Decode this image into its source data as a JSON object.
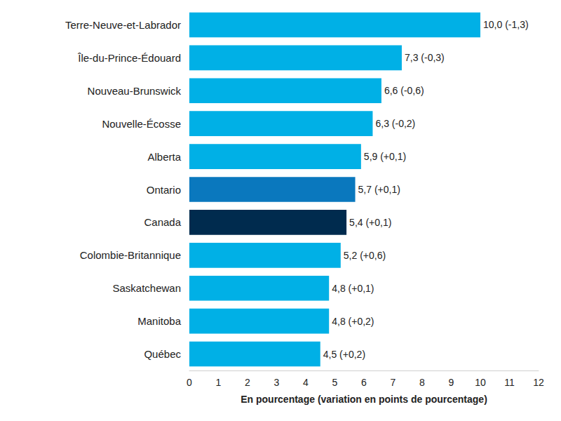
{
  "chart_data": {
    "type": "bar",
    "orientation": "horizontal",
    "categories": [
      "Terre-Neuve-et-Labrador",
      "Île-du-Prince-Édouard",
      "Nouveau-Brunswick",
      "Nouvelle-Écosse",
      "Alberta",
      "Ontario",
      "Canada",
      "Colombie-Britannique",
      "Saskatchewan",
      "Manitoba",
      "Québec"
    ],
    "values": [
      10.0,
      7.3,
      6.6,
      6.3,
      5.9,
      5.7,
      5.4,
      5.2,
      4.8,
      4.8,
      4.5
    ],
    "value_labels": [
      "10,0 (-1,3)",
      "7,3 (-0,3)",
      "6,6 (-0,6)",
      "6,3 (-0,2)",
      "5,9 (+0,1)",
      "5,7 (+0,1)",
      "5,4 (+0,1)",
      "5,2 (+0,6)",
      "4,8 (+0,1)",
      "4,8 (+0,2)",
      "4,5 (+0,2)"
    ],
    "colors": [
      "#00b0e6",
      "#00b0e6",
      "#00b0e6",
      "#00b0e6",
      "#00b0e6",
      "#0a78be",
      "#002b4e",
      "#00b0e6",
      "#00b0e6",
      "#00b0e6",
      "#00b0e6"
    ],
    "xlim": [
      0,
      12
    ],
    "xticks": [
      0,
      1,
      2,
      3,
      4,
      5,
      6,
      7,
      8,
      9,
      10,
      11,
      12
    ],
    "xlabel": "En pourcentage (variation en points de pourcentage)",
    "data_labels": true,
    "grid": false
  }
}
